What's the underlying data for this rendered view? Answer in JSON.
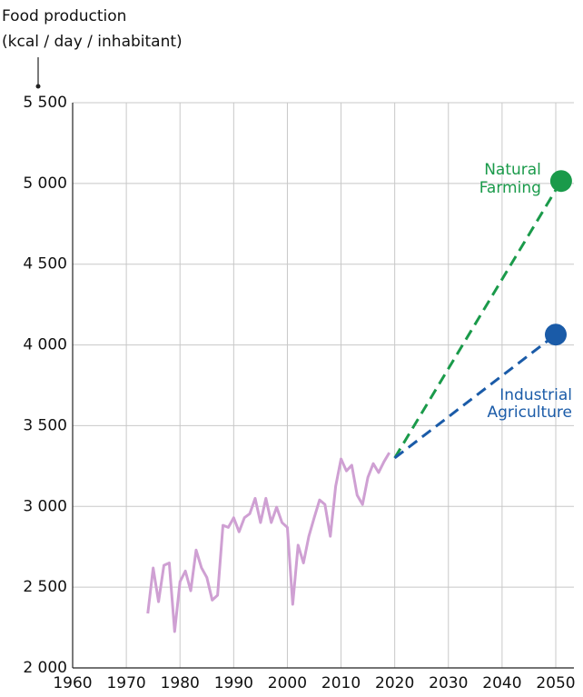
{
  "chart_data": {
    "type": "line",
    "title": "Food production",
    "subtitle": "(kcal / day / inhabitant)",
    "xlim": [
      1960,
      2050
    ],
    "xticks": [
      1960,
      1970,
      1980,
      1990,
      2000,
      2010,
      2020,
      2030,
      2040,
      2050
    ],
    "ylim": [
      2000,
      5500
    ],
    "yticks": [
      {
        "value": 2000,
        "label": "2 000"
      },
      {
        "value": 2500,
        "label": "2 500"
      },
      {
        "value": 3000,
        "label": "3 000"
      },
      {
        "value": 3500,
        "label": "3 500"
      },
      {
        "value": 4000,
        "label": "4 000"
      },
      {
        "value": 4500,
        "label": "4 500"
      },
      {
        "value": 5000,
        "label": "5 000"
      },
      {
        "value": 5500,
        "label": "5 500"
      }
    ],
    "grid": true,
    "series": [
      {
        "color": "#cfa0d3",
        "style": "solid",
        "x": [
          1974,
          1975,
          1976,
          1977,
          1978,
          1979,
          1980,
          1981,
          1982,
          1983,
          1984,
          1985,
          1986,
          1987,
          1988,
          1989,
          1990,
          1991,
          1992,
          1993,
          1994,
          1995,
          1996,
          1997,
          1998,
          1999,
          2000,
          2001,
          2002,
          2003,
          2004,
          2005,
          2006,
          2007,
          2008,
          2009,
          2010,
          2011,
          2012,
          2013,
          2014,
          2015,
          2016,
          2017,
          2018,
          2019
        ],
        "values": [
          2337,
          2619,
          2410,
          2635,
          2650,
          2225,
          2534,
          2600,
          2478,
          2730,
          2620,
          2560,
          2420,
          2450,
          2883,
          2870,
          2930,
          2843,
          2930,
          2955,
          3050,
          2900,
          3050,
          2900,
          2995,
          2900,
          2870,
          2394,
          2760,
          2650,
          2815,
          2930,
          3040,
          3012,
          2815,
          3125,
          3294,
          3220,
          3255,
          3070,
          3012,
          3180,
          3265,
          3210,
          3277,
          3333
        ]
      },
      {
        "color": "#1a9a4a",
        "style": "dashed",
        "label": [
          "Natural",
          "Farming"
        ],
        "x": [
          2020,
          2051
        ],
        "values": [
          3300,
          5015
        ]
      },
      {
        "color": "#1a5ba8",
        "style": "dashed",
        "label": [
          "Industrial",
          "Agriculture"
        ],
        "x": [
          2020,
          2050
        ],
        "values": [
          3300,
          4064
        ]
      }
    ]
  }
}
